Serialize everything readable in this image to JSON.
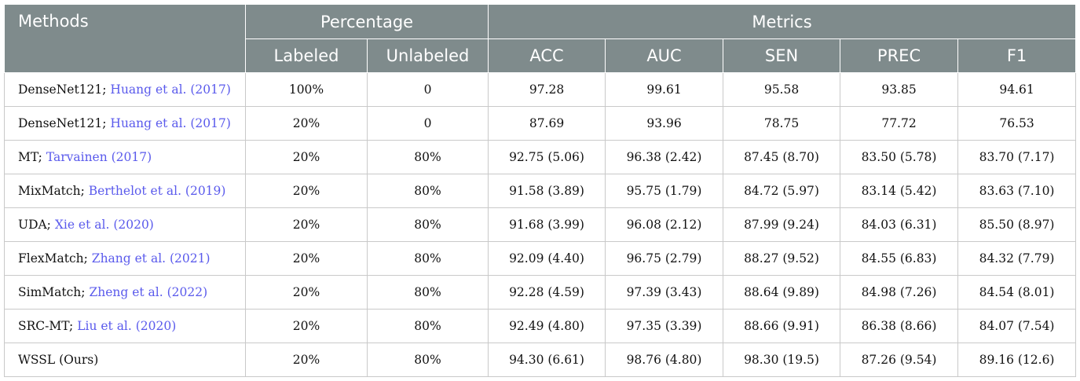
{
  "header": {
    "methods": "Methods",
    "percentage": "Percentage",
    "metrics": "Metrics",
    "labeled": "Labeled",
    "unlabeled": "Unlabeled",
    "acc": "ACC",
    "auc": "AUC",
    "sen": "SEN",
    "prec": "PREC",
    "f1": "F1"
  },
  "rows": [
    {
      "method": "DenseNet121;",
      "cite": "Huang et al. (2017)",
      "labeled": "100%",
      "unlabeled": "0",
      "acc": "97.28",
      "auc": "99.61",
      "sen": "95.58",
      "prec": "93.85",
      "f1": "94.61"
    },
    {
      "method": "DenseNet121;",
      "cite": "Huang et al. (2017)",
      "labeled": "20%",
      "unlabeled": "0",
      "acc": "87.69",
      "auc": "93.96",
      "sen": "78.75",
      "prec": "77.72",
      "f1": "76.53"
    },
    {
      "method": "MT;",
      "cite": "Tarvainen (2017)",
      "labeled": "20%",
      "unlabeled": "80%",
      "acc": "92.75 (5.06)",
      "auc": "96.38 (2.42)",
      "sen": "87.45 (8.70)",
      "prec": "83.50 (5.78)",
      "f1": "83.70 (7.17)"
    },
    {
      "method": "MixMatch;",
      "cite": "Berthelot et al. (2019)",
      "labeled": "20%",
      "unlabeled": "80%",
      "acc": "91.58 (3.89)",
      "auc": "95.75 (1.79)",
      "sen": "84.72 (5.97)",
      "prec": "83.14 (5.42)",
      "f1": "83.63 (7.10)"
    },
    {
      "method": "UDA;",
      "cite": "Xie et al. (2020)",
      "labeled": "20%",
      "unlabeled": "80%",
      "acc": "91.68 (3.99)",
      "auc": "96.08 (2.12)",
      "sen": "87.99 (9.24)",
      "prec": "84.03 (6.31)",
      "f1": "85.50 (8.97)"
    },
    {
      "method": "FlexMatch;",
      "cite": "Zhang et al. (2021)",
      "labeled": "20%",
      "unlabeled": "80%",
      "acc": "92.09 (4.40)",
      "auc": "96.75 (2.79)",
      "sen": "88.27 (9.52)",
      "prec": "84.55 (6.83)",
      "f1": "84.32 (7.79)"
    },
    {
      "method": "SimMatch;",
      "cite": "Zheng et al. (2022)",
      "labeled": "20%",
      "unlabeled": "80%",
      "acc": "92.28 (4.59)",
      "auc": "97.39 (3.43)",
      "sen": "88.64 (9.89)",
      "prec": "84.98 (7.26)",
      "f1": "84.54 (8.01)"
    },
    {
      "method": "SRC-MT;",
      "cite": "Liu et al. (2020)",
      "labeled": "20%",
      "unlabeled": "80%",
      "acc": "92.49 (4.80)",
      "auc": "97.35 (3.39)",
      "sen": "88.66 (9.91)",
      "prec": "86.38 (8.66)",
      "f1": "84.07 (7.54)"
    },
    {
      "method": "WSSL (Ours)",
      "cite": "",
      "labeled": "20%",
      "unlabeled": "80%",
      "acc": "94.30 (6.61)",
      "auc": "98.76 (4.80)",
      "sen": "98.30 (19.5)",
      "prec": "87.26 (9.54)",
      "f1": "89.16 (12.6)"
    }
  ]
}
